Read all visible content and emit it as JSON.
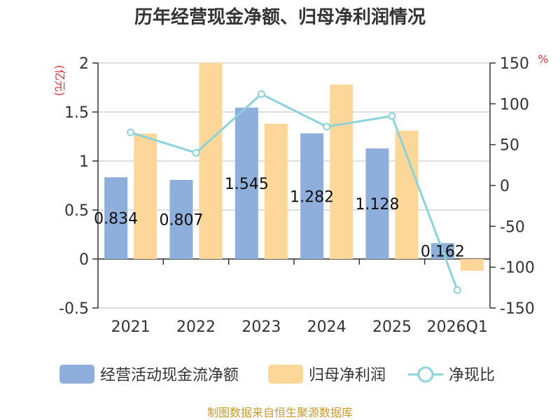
{
  "chart_data": {
    "type": "bar",
    "title": "历年经营现金净额、归母净利润情况",
    "categories": [
      "2021",
      "2022",
      "2023",
      "2024",
      "2025",
      "2026Q1"
    ],
    "left_axis": {
      "unit": "(亿元)",
      "ticks": [
        "2",
        "1.5",
        "1",
        "0.5",
        "0",
        "-0.5"
      ],
      "range": [
        -0.5,
        2
      ]
    },
    "right_axis": {
      "unit": "%",
      "ticks": [
        "150",
        "100",
        "50",
        "0",
        "-50",
        "-100",
        "-150"
      ],
      "range": [
        -150,
        150
      ]
    },
    "series": [
      {
        "name": "经营活动现金流净额",
        "kind": "bar",
        "axis": "left",
        "color": "#8eaedb",
        "values": [
          0.834,
          0.807,
          1.545,
          1.282,
          1.128,
          0.162
        ],
        "labels": [
          "0.834",
          "0.807",
          "1.545",
          "1.282",
          "1.128",
          "0.162"
        ]
      },
      {
        "name": "归母净利润",
        "kind": "bar",
        "axis": "left",
        "color": "#fdd799",
        "values": [
          1.28,
          2.0,
          1.38,
          1.78,
          1.31,
          -0.12
        ]
      },
      {
        "name": "净现比",
        "kind": "line",
        "axis": "right",
        "color": "#8bd3d9",
        "values": [
          65,
          40,
          112,
          72,
          85,
          -128
        ]
      }
    ]
  },
  "source_text": "制图数据来自恒生聚源数据库"
}
